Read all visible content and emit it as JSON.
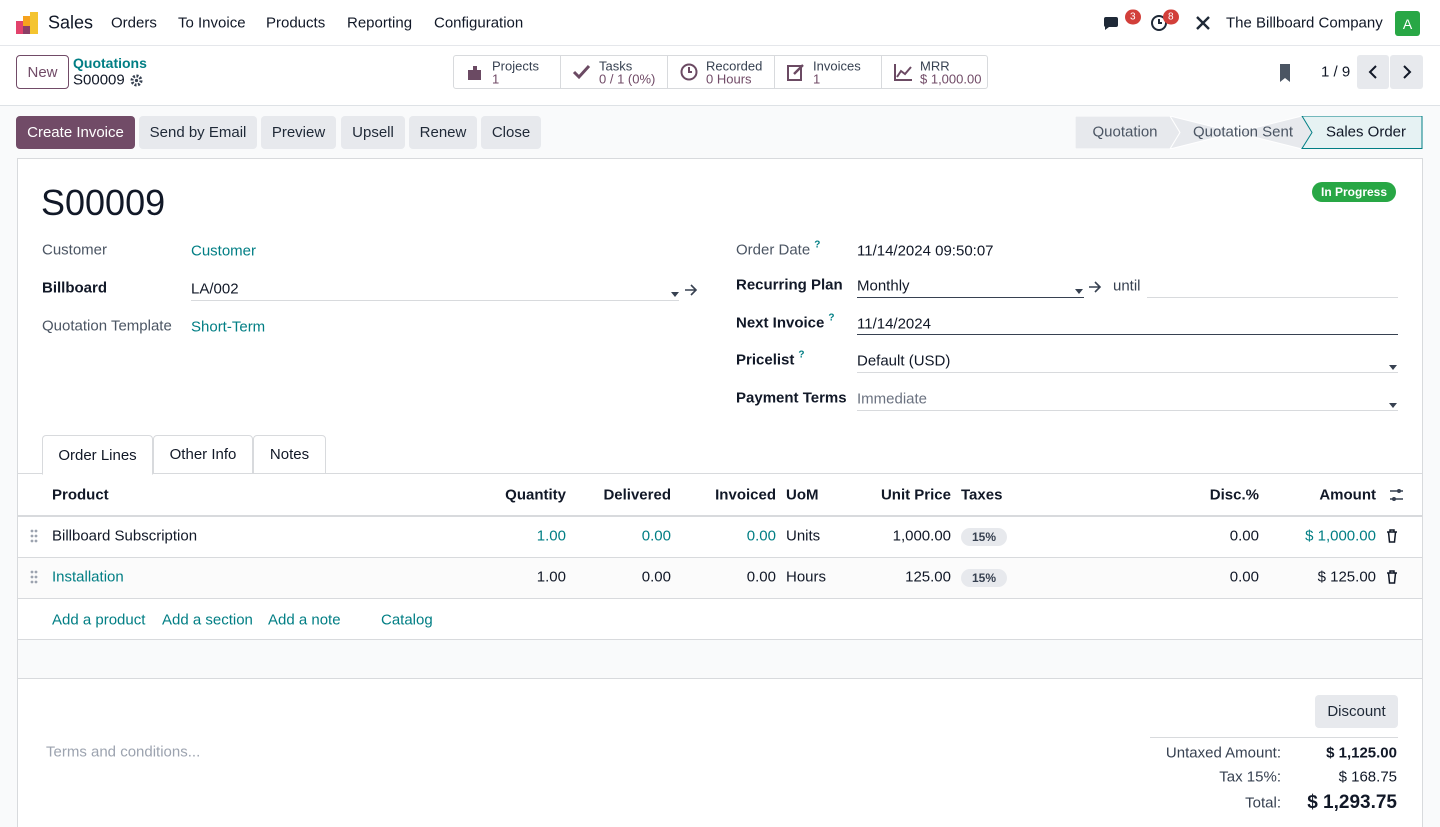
{
  "navbar": {
    "app_name": "Sales",
    "menu": [
      "Orders",
      "To Invoice",
      "Products",
      "Reporting",
      "Configuration"
    ],
    "message_count": 3,
    "activity_count": 8,
    "company": "The Billboard Company",
    "user_initial": "A"
  },
  "control_panel": {
    "new_button": "New",
    "breadcrumb": "Quotations",
    "record_name": "S00009",
    "smart_buttons": [
      {
        "label": "Projects",
        "value": "1"
      },
      {
        "label": "Tasks",
        "value": "0 / 1 (0%)"
      },
      {
        "label": "Recorded",
        "value": "0 Hours"
      },
      {
        "label": "Invoices",
        "value": "1"
      },
      {
        "label": "MRR",
        "value": "$ 1,000.00"
      }
    ],
    "pager": "1 / 9"
  },
  "action_buttons": [
    "Create Invoice",
    "Send by Email",
    "Preview",
    "Upsell",
    "Renew",
    "Close"
  ],
  "statusbar": [
    "Quotation",
    "Quotation Sent",
    "Sales Order"
  ],
  "form": {
    "title": "S00009",
    "status_badge": "In Progress",
    "left_fields": [
      {
        "label": "Customer",
        "value": "Customer"
      },
      {
        "label": "Billboard",
        "value": "LA/002"
      },
      {
        "label": "Quotation Template",
        "value": "Short-Term"
      }
    ],
    "right_fields": [
      {
        "label": "Order Date",
        "help": "?",
        "value": "11/14/2024 09:50:07"
      },
      {
        "label": "Recurring Plan",
        "value": "Monthly",
        "until": "until"
      },
      {
        "label": "Next Invoice",
        "help": "?",
        "value": "11/14/2024"
      },
      {
        "label": "Pricelist",
        "help": "?",
        "value": "Default (USD)"
      },
      {
        "label": "Payment Terms",
        "value": "Immediate"
      }
    ],
    "tabs": [
      "Order Lines",
      "Other Info",
      "Notes"
    ],
    "order_lines": {
      "columns": [
        "Product",
        "Quantity",
        "Delivered",
        "Invoiced",
        "UoM",
        "Unit Price",
        "Taxes",
        "Disc.%",
        "Amount"
      ],
      "rows": [
        [
          "Billboard Subscription",
          "1.00",
          "0.00",
          "0.00",
          "Units",
          "1,000.00",
          "15%",
          "0.00",
          "$ 1,000.00"
        ],
        [
          "Installation",
          "1.00",
          "0.00",
          "0.00",
          "Hours",
          "125.00",
          "15%",
          "0.00",
          "$ 125.00"
        ]
      ],
      "add_links": [
        "Add a product",
        "Add a section",
        "Add a note",
        "Catalog"
      ]
    },
    "terms_placeholder": "Terms and conditions...",
    "discount_button": "Discount",
    "totals": [
      {
        "label": "Untaxed Amount:",
        "value": "$ 1,125.00"
      },
      {
        "label": "Tax 15%:",
        "value": "$ 168.75"
      },
      {
        "label": "Total:",
        "value": "$ 1,293.75"
      }
    ]
  }
}
